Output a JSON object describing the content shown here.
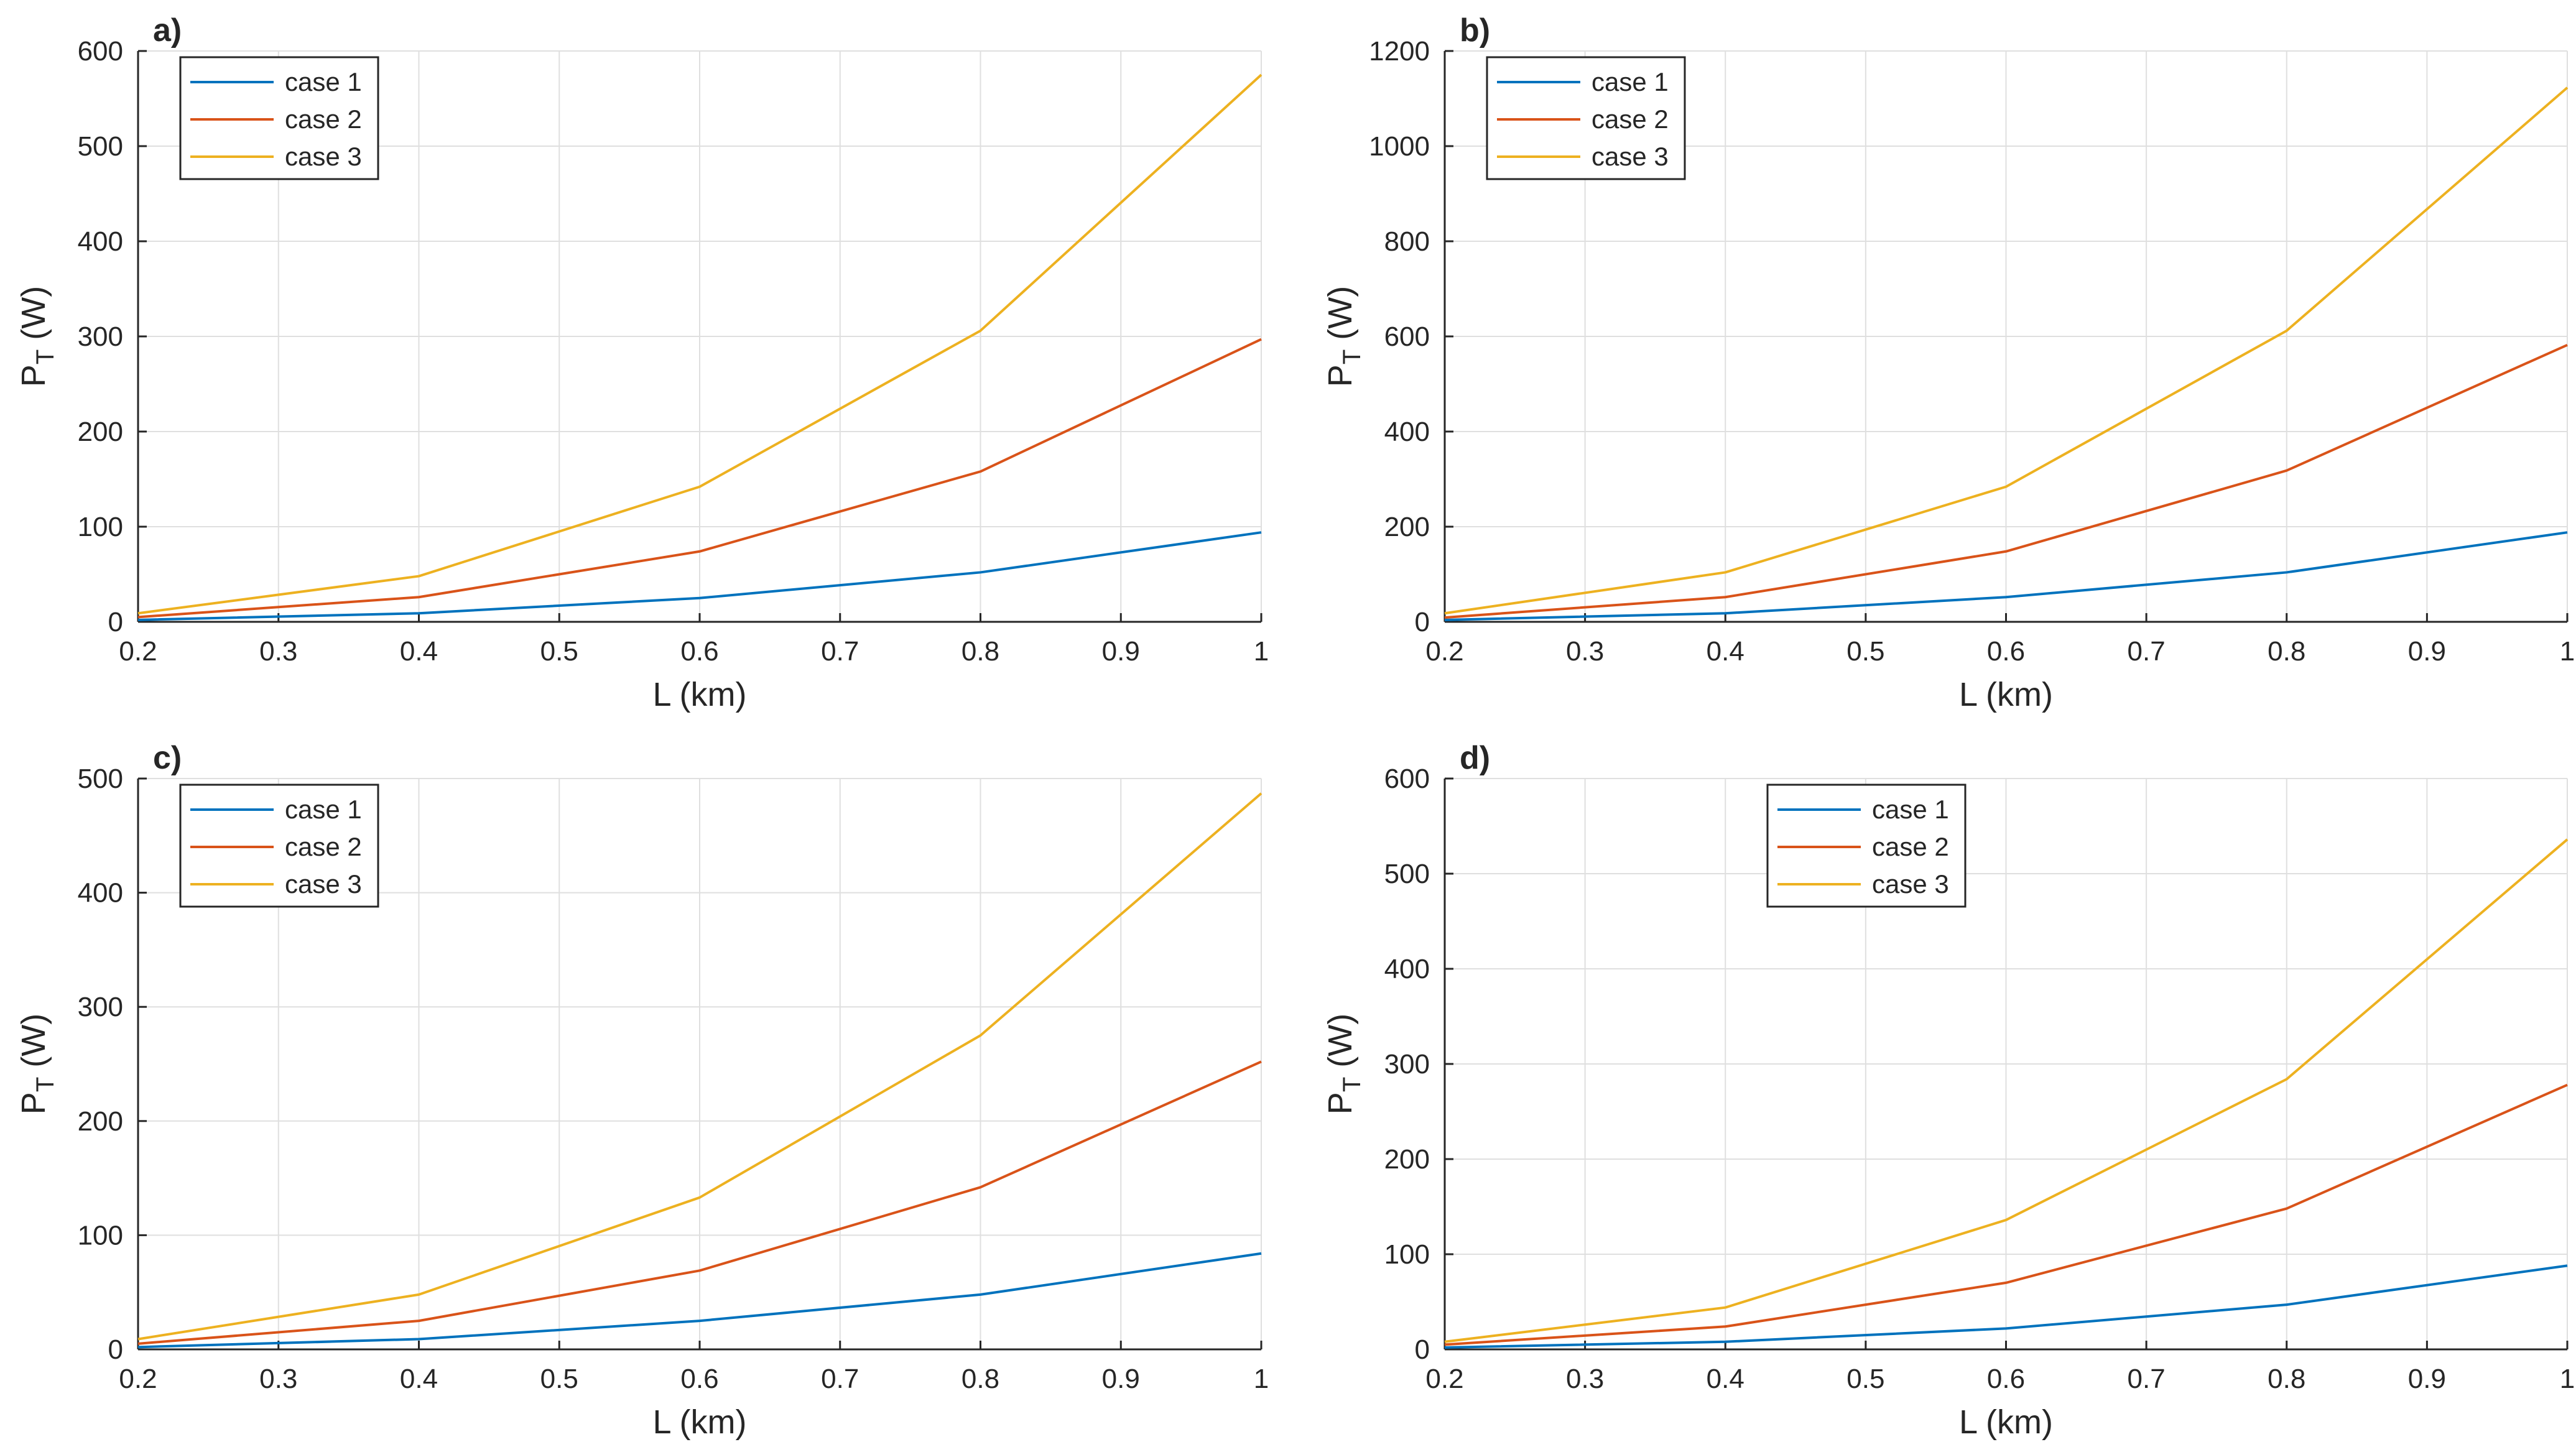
{
  "chart_data": [
    {
      "type": "line",
      "panel": "a)",
      "xlabel": "L (km)",
      "ylabel_main": "P",
      "ylabel_sub": "T",
      "ylabel_unit": " (W)",
      "xlim": [
        0.2,
        1
      ],
      "ylim": [
        0,
        600
      ],
      "xticks": [
        0.2,
        0.3,
        0.4,
        0.5,
        0.6,
        0.7,
        0.8,
        0.9,
        1
      ],
      "xtick_labels": [
        "0.2",
        "0.3",
        "0.4",
        "0.5",
        "0.6",
        "0.7",
        "0.8",
        "0.9",
        "1"
      ],
      "yticks": [
        0,
        100,
        200,
        300,
        400,
        500,
        600
      ],
      "ytick_labels": [
        "0",
        "100",
        "200",
        "300",
        "400",
        "500",
        "600"
      ],
      "grid": true,
      "legend_position": "top-left",
      "x": [
        0.2,
        0.4,
        0.6,
        0.8,
        1.0
      ],
      "series": [
        {
          "name": "case 1",
          "color": "#0072BD",
          "values": [
            2,
            9,
            25,
            52,
            94
          ]
        },
        {
          "name": "case 2",
          "color": "#D95319",
          "values": [
            5,
            26,
            74,
            158,
            297
          ]
        },
        {
          "name": "case 3",
          "color": "#EDB120",
          "values": [
            9,
            48,
            142,
            306,
            575
          ]
        }
      ]
    },
    {
      "type": "line",
      "panel": "b)",
      "xlabel": "L (km)",
      "ylabel_main": "P",
      "ylabel_sub": "T",
      "ylabel_unit": " (W)",
      "xlim": [
        0.2,
        1
      ],
      "ylim": [
        0,
        1200
      ],
      "xticks": [
        0.2,
        0.3,
        0.4,
        0.5,
        0.6,
        0.7,
        0.8,
        0.9,
        1
      ],
      "xtick_labels": [
        "0.2",
        "0.3",
        "0.4",
        "0.5",
        "0.6",
        "0.7",
        "0.8",
        "0.9",
        "1"
      ],
      "yticks": [
        0,
        200,
        400,
        600,
        800,
        1000,
        1200
      ],
      "ytick_labels": [
        "0",
        "200",
        "400",
        "600",
        "800",
        "1000",
        "1200"
      ],
      "grid": true,
      "legend_position": "top-left",
      "x": [
        0.2,
        0.4,
        0.6,
        0.8,
        1.0
      ],
      "series": [
        {
          "name": "case 1",
          "color": "#0072BD",
          "values": [
            4,
            18,
            52,
            104,
            188
          ]
        },
        {
          "name": "case 2",
          "color": "#D95319",
          "values": [
            9,
            52,
            148,
            318,
            582
          ]
        },
        {
          "name": "case 3",
          "color": "#EDB120",
          "values": [
            18,
            104,
            284,
            612,
            1123
          ]
        }
      ]
    },
    {
      "type": "line",
      "panel": "c)",
      "xlabel": "L (km)",
      "ylabel_main": "P",
      "ylabel_sub": "T",
      "ylabel_unit": " (W)",
      "xlim": [
        0.2,
        1
      ],
      "ylim": [
        0,
        500
      ],
      "xticks": [
        0.2,
        0.3,
        0.4,
        0.5,
        0.6,
        0.7,
        0.8,
        0.9,
        1
      ],
      "xtick_labels": [
        "0.2",
        "0.3",
        "0.4",
        "0.5",
        "0.6",
        "0.7",
        "0.8",
        "0.9",
        "1"
      ],
      "yticks": [
        0,
        100,
        200,
        300,
        400,
        500
      ],
      "ytick_labels": [
        "0",
        "100",
        "200",
        "300",
        "400",
        "500"
      ],
      "grid": true,
      "legend_position": "top-left",
      "x": [
        0.2,
        0.4,
        0.6,
        0.8,
        1.0
      ],
      "series": [
        {
          "name": "case 1",
          "color": "#0072BD",
          "values": [
            2,
            9,
            25,
            48,
            84
          ]
        },
        {
          "name": "case 2",
          "color": "#D95319",
          "values": [
            5,
            25,
            69,
            142,
            252
          ]
        },
        {
          "name": "case 3",
          "color": "#EDB120",
          "values": [
            9,
            48,
            133,
            275,
            487
          ]
        }
      ]
    },
    {
      "type": "line",
      "panel": "d)",
      "xlabel": "L (km)",
      "ylabel_main": "P",
      "ylabel_sub": "T",
      "ylabel_unit": " (W)",
      "xlim": [
        0.2,
        1
      ],
      "ylim": [
        0,
        600
      ],
      "xticks": [
        0.2,
        0.3,
        0.4,
        0.5,
        0.6,
        0.7,
        0.8,
        0.9,
        1
      ],
      "xtick_labels": [
        "0.2",
        "0.3",
        "0.4",
        "0.5",
        "0.6",
        "0.7",
        "0.8",
        "0.9",
        "1"
      ],
      "yticks": [
        0,
        100,
        200,
        300,
        400,
        500,
        600
      ],
      "ytick_labels": [
        "0",
        "100",
        "200",
        "300",
        "400",
        "500",
        "600"
      ],
      "grid": true,
      "legend_position": "top-center",
      "x": [
        0.2,
        0.4,
        0.6,
        0.8,
        1.0
      ],
      "series": [
        {
          "name": "case 1",
          "color": "#0072BD",
          "values": [
            2,
            8,
            22,
            47,
            88
          ]
        },
        {
          "name": "case 2",
          "color": "#D95319",
          "values": [
            5,
            24,
            70,
            148,
            278
          ]
        },
        {
          "name": "case 3",
          "color": "#EDB120",
          "values": [
            8,
            44,
            136,
            284,
            536
          ]
        }
      ]
    }
  ]
}
